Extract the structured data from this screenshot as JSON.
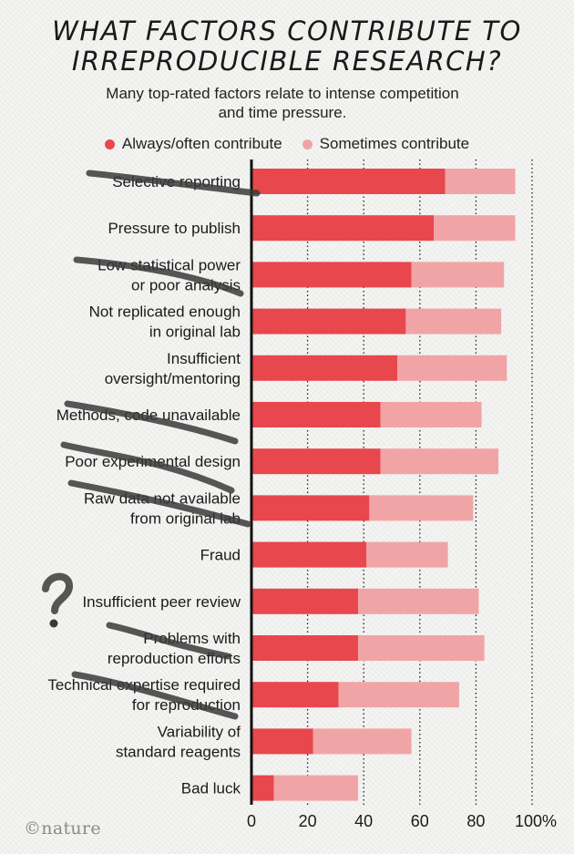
{
  "title_line1": "WHAT FACTORS CONTRIBUTE TO",
  "title_line2": "IRREPRODUCIBLE RESEARCH?",
  "subtitle_line1": "Many top-rated factors relate to intense competition",
  "subtitle_line2": "and time pressure.",
  "logo": "©nature",
  "colors": {
    "always": "#e8474d",
    "sometimes": "#f1a4a6",
    "axis": "#111111",
    "grid": "#222222"
  },
  "chart_data": {
    "type": "bar",
    "orientation": "horizontal",
    "stacked": true,
    "categories": [
      [
        "Selective reporting"
      ],
      [
        "Pressure to publish"
      ],
      [
        "Low statistical power",
        "or poor analysis"
      ],
      [
        "Not replicated enough",
        "in original lab"
      ],
      [
        "Insufficient",
        "oversight/mentoring"
      ],
      [
        "Methods, code unavailable"
      ],
      [
        "Poor experimental design"
      ],
      [
        "Raw data not available",
        "from original lab"
      ],
      [
        "Fraud"
      ],
      [
        "Insufficient peer review"
      ],
      [
        "Problems with",
        "reproduction efforts"
      ],
      [
        "Technical expertise required",
        "for reproduction"
      ],
      [
        "Variability of",
        "standard reagents"
      ],
      [
        "Bad luck"
      ]
    ],
    "series": [
      {
        "name": "Always/often contribute",
        "values": [
          69,
          65,
          57,
          55,
          52,
          46,
          46,
          42,
          41,
          38,
          38,
          31,
          22,
          8
        ]
      },
      {
        "name": "Sometimes contribute",
        "values": [
          25,
          29,
          33,
          34,
          39,
          36,
          42,
          37,
          29,
          43,
          45,
          43,
          35,
          30
        ]
      }
    ],
    "xticks": [
      "0",
      "20",
      "40",
      "60",
      "80",
      "100%"
    ],
    "xlim": [
      0,
      100
    ],
    "grid": "vertical dotted",
    "legend_position": "top"
  }
}
